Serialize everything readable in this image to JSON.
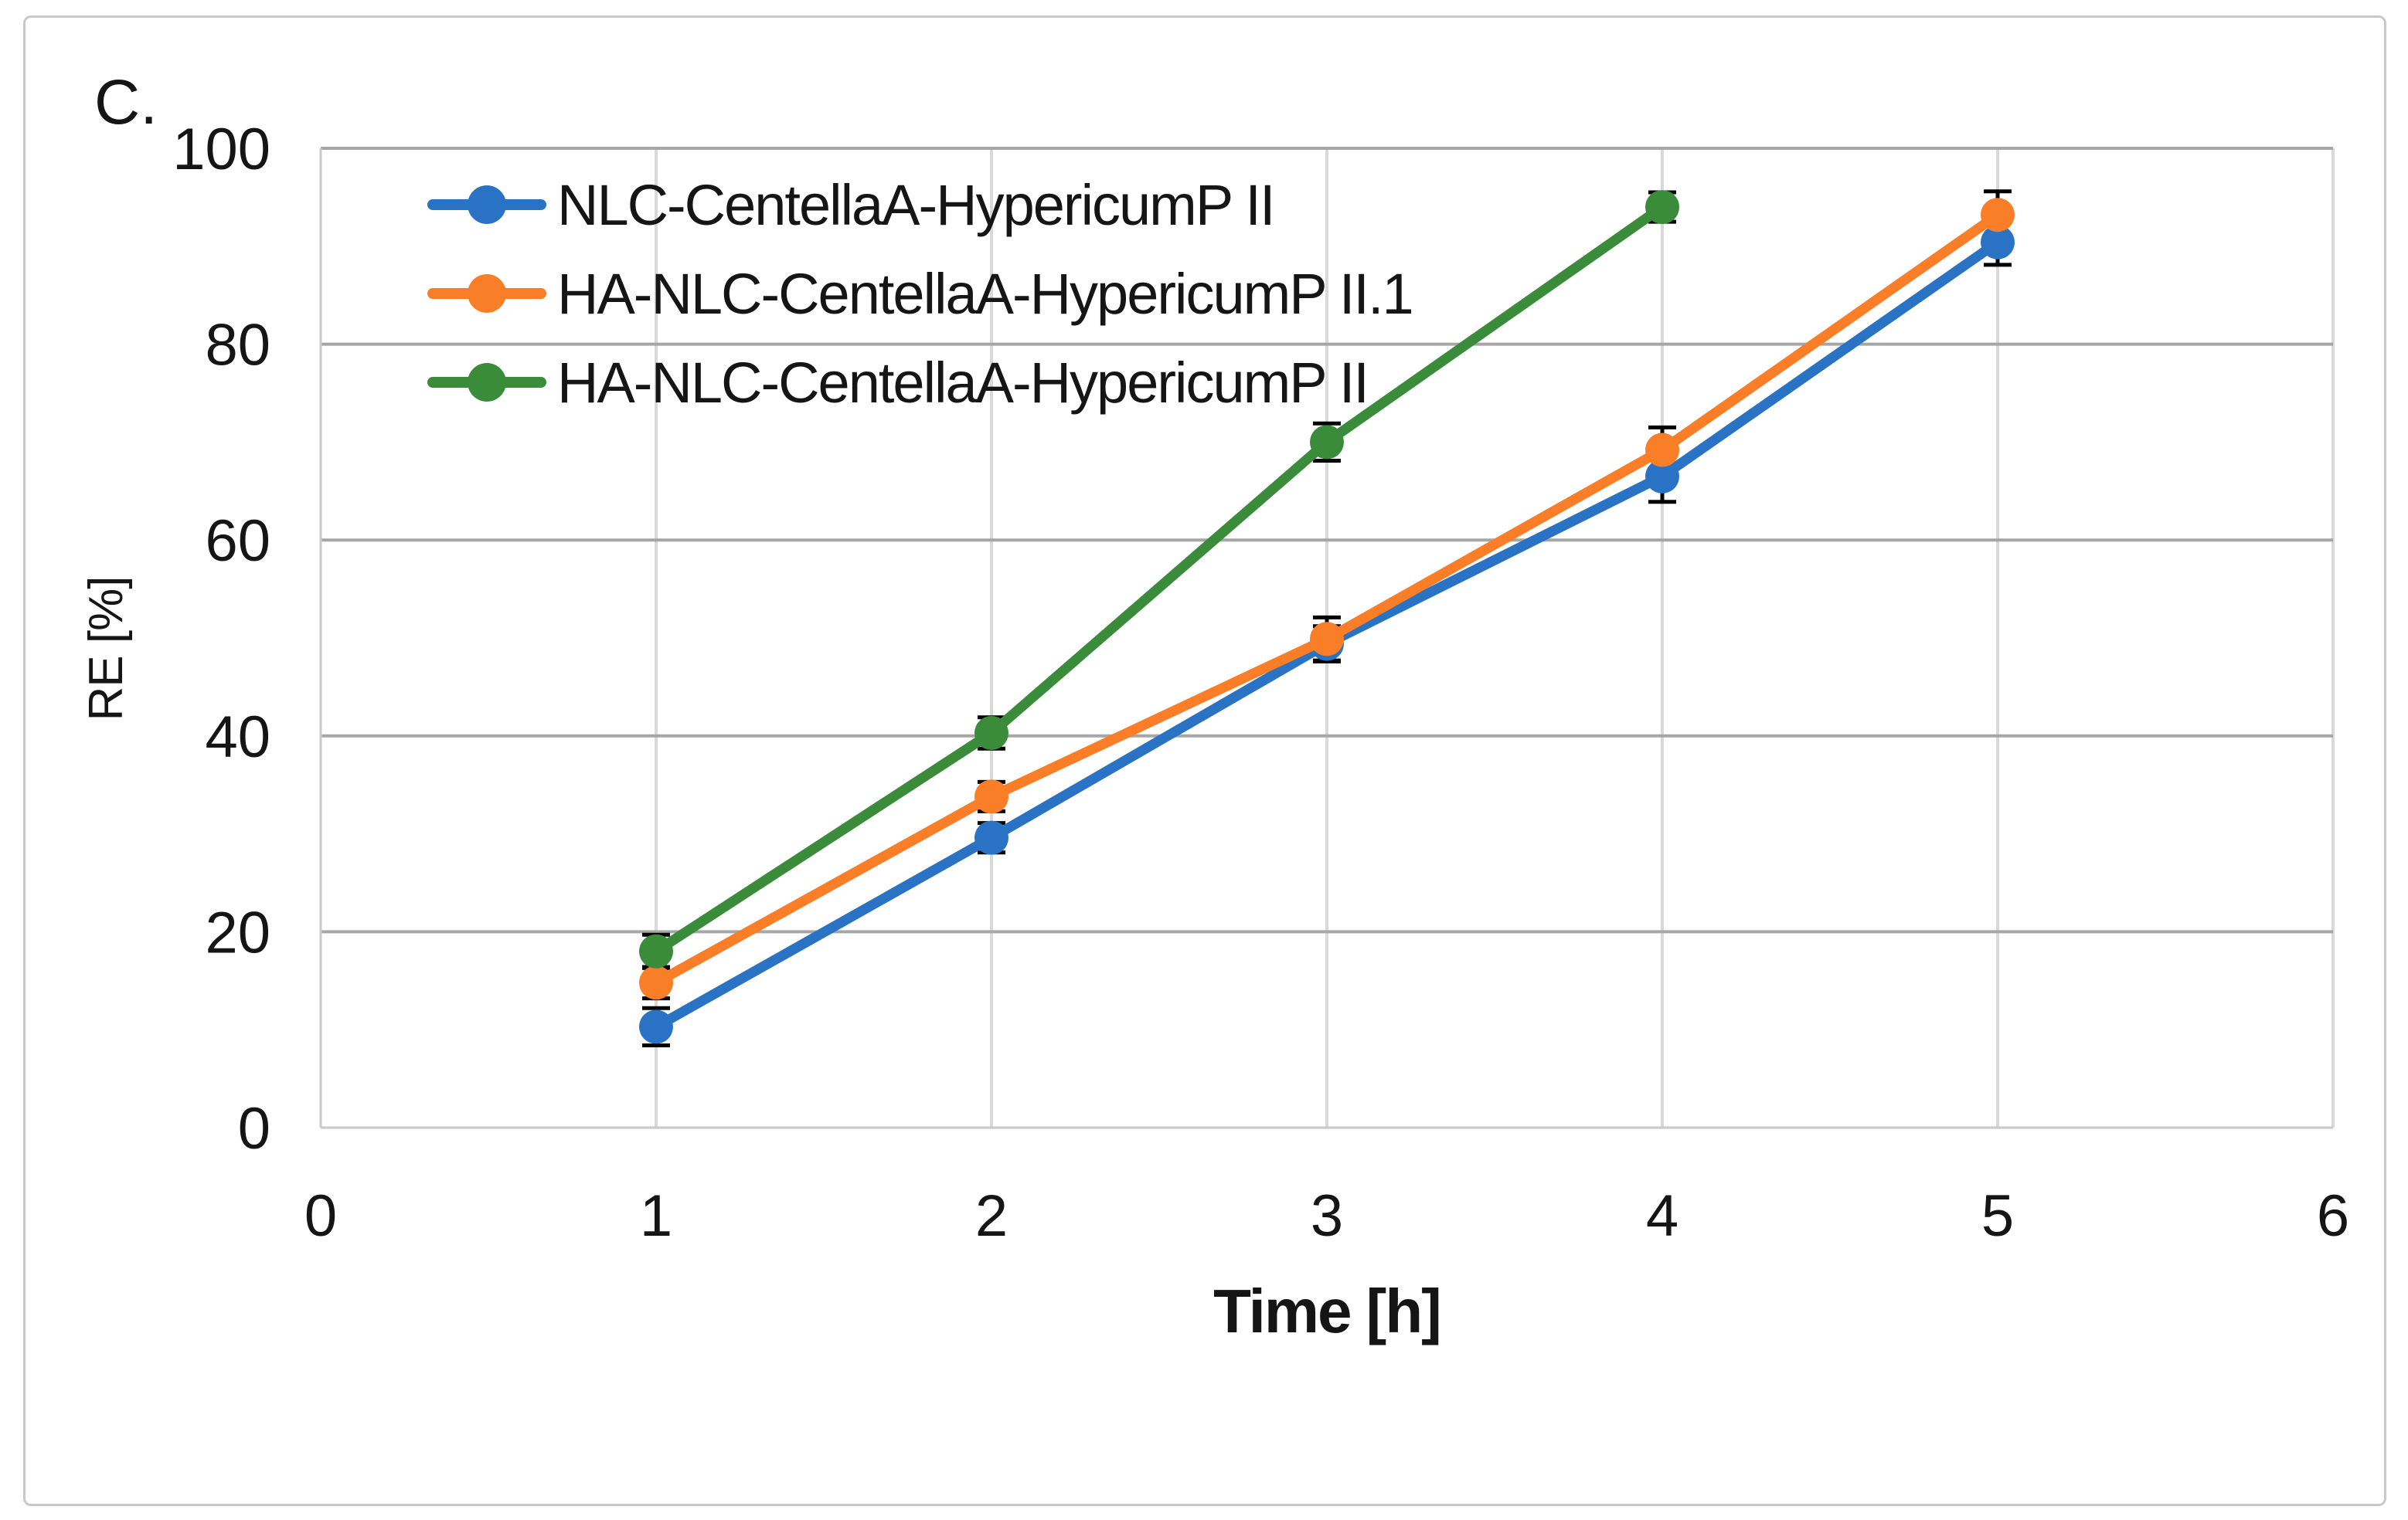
{
  "figure": {
    "panel_label": "C.",
    "background": "#ffffff",
    "border_color": "#c9c9c9"
  },
  "chart_data": {
    "type": "line",
    "title": "",
    "xlabel": "Time [h]",
    "ylabel": "RE [%]",
    "xlim": [
      0,
      6
    ],
    "ylim": [
      0,
      100
    ],
    "x_ticks": [
      0,
      1,
      2,
      3,
      4,
      5,
      6
    ],
    "y_ticks": [
      0,
      20,
      40,
      60,
      80,
      100
    ],
    "grid": "horizontal-major-dark, vertical-major-light",
    "legend_position": "top-left-inside",
    "error_bar_color": "#000000",
    "h_gridline_color": "#a6a6a6",
    "v_gridline_color": "#d9d9d9",
    "plot_border_color": "#c9c9c9",
    "series": [
      {
        "name": "NLC-CentellaA-HypericumP II",
        "color": "#2a73c4",
        "marker": "circle",
        "x": [
          1,
          2,
          3,
          4,
          5
        ],
        "values": [
          10.3,
          29.6,
          49.4,
          66.5,
          90.4
        ],
        "error": [
          1.9,
          1.5,
          1.8,
          2.6,
          2.3
        ]
      },
      {
        "name": "HA-NLC-CentellaA-HypericumP II.1",
        "color": "#fa7d28",
        "marker": "circle",
        "x": [
          1,
          2,
          3,
          4,
          5
        ],
        "values": [
          14.8,
          33.8,
          49.9,
          69.2,
          93.2
        ],
        "error": [
          1.6,
          1.5,
          2.2,
          2.3,
          2.4
        ]
      },
      {
        "name": "HA-NLC-CentellaA-HypericumP II",
        "color": "#3a8c3a",
        "marker": "circle",
        "x": [
          1,
          2,
          3,
          4
        ],
        "values": [
          18.0,
          40.3,
          70.0,
          94.0
        ],
        "error": [
          1.7,
          1.6,
          1.9,
          1.5
        ]
      }
    ]
  }
}
